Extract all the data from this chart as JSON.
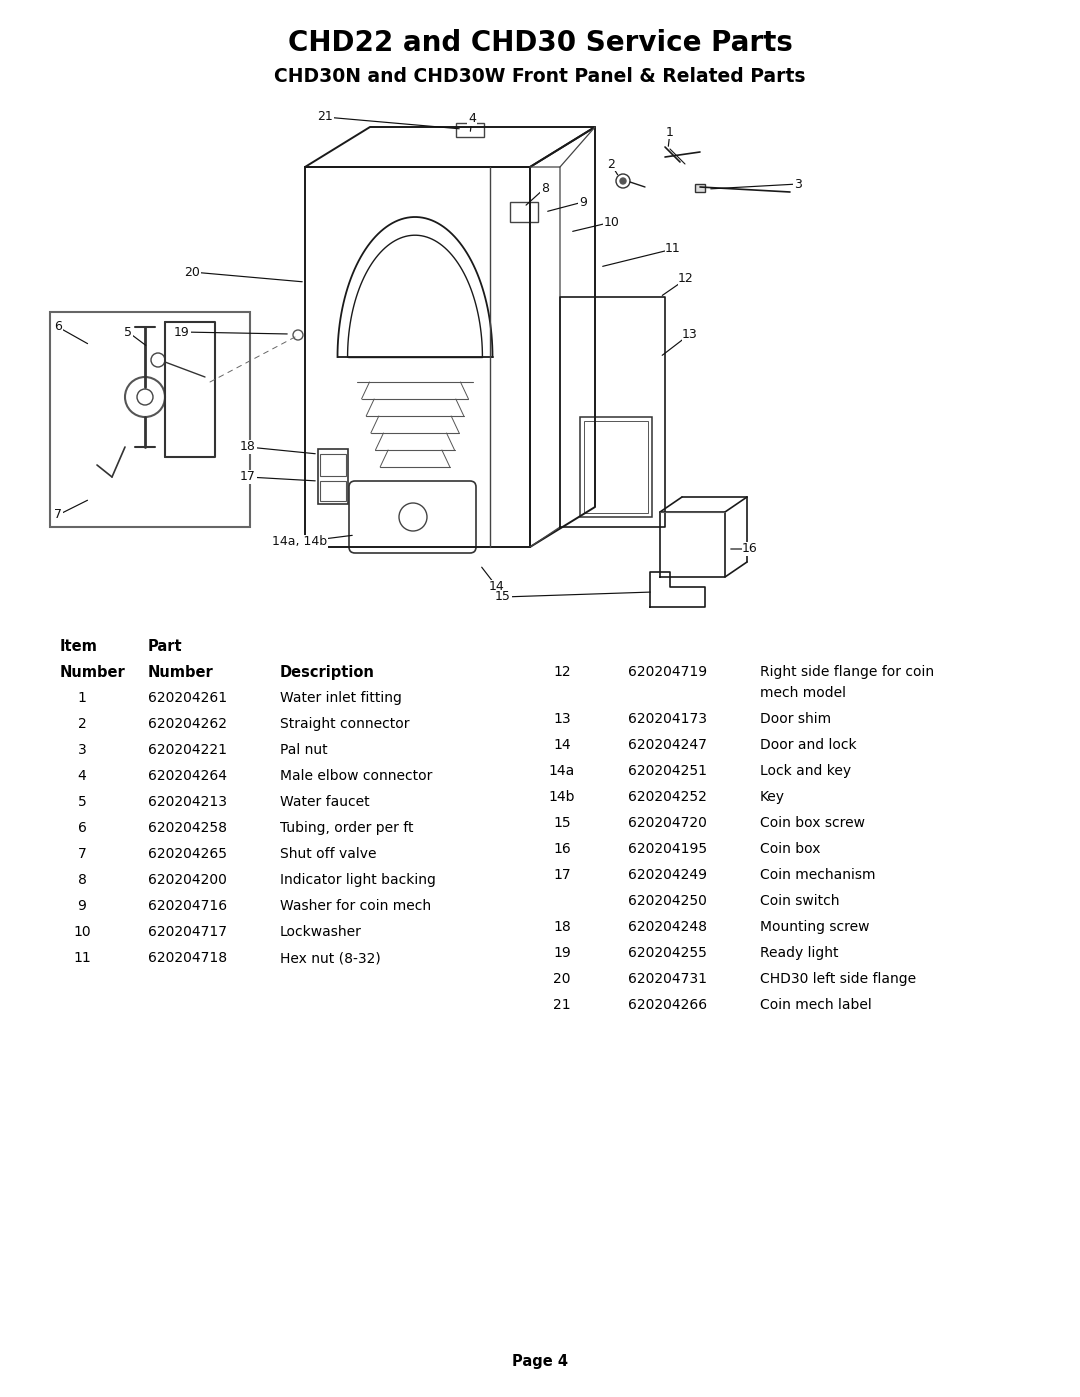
{
  "title": "CHD22 and CHD30 Service Parts",
  "subtitle": "CHD30N and CHD30W Front Panel & Related Parts",
  "page_label": "Page 4",
  "background_color": "#ffffff",
  "title_fontsize": 20,
  "subtitle_fontsize": 14,
  "left_table": [
    [
      "1",
      "620204261",
      "Water inlet fitting"
    ],
    [
      "2",
      "620204262",
      "Straight connector"
    ],
    [
      "3",
      "620204221",
      "Pal nut"
    ],
    [
      "4",
      "620204264",
      "Male elbow connector"
    ],
    [
      "5",
      "620204213",
      "Water faucet"
    ],
    [
      "6",
      "620204258",
      "Tubing, order per ft"
    ],
    [
      "7",
      "620204265",
      "Shut off valve"
    ],
    [
      "8",
      "620204200",
      "Indicator light backing"
    ],
    [
      "9",
      "620204716",
      "Washer for coin mech"
    ],
    [
      "10",
      "620204717",
      "Lockwasher"
    ],
    [
      "11",
      "620204718",
      "Hex nut (8-32)"
    ]
  ],
  "right_table": [
    [
      "12",
      "620204719",
      "Right side flange for coin\nmech model"
    ],
    [
      "13",
      "620204173",
      "Door shim"
    ],
    [
      "14",
      "620204247",
      "Door and lock"
    ],
    [
      "14a",
      "620204251",
      "Lock and key"
    ],
    [
      "14b",
      "620204252",
      "Key"
    ],
    [
      "15",
      "620204720",
      "Coin box screw"
    ],
    [
      "16",
      "620204195",
      "Coin box"
    ],
    [
      "17",
      "620204249",
      "Coin mechanism"
    ],
    [
      "",
      "620204250",
      "Coin switch"
    ],
    [
      "18",
      "620204248",
      "Mounting screw"
    ],
    [
      "19",
      "620204255",
      "Ready light"
    ],
    [
      "20",
      "620204731",
      "CHD30 left side flange"
    ],
    [
      "21",
      "620204266",
      "Coin mech label"
    ]
  ]
}
